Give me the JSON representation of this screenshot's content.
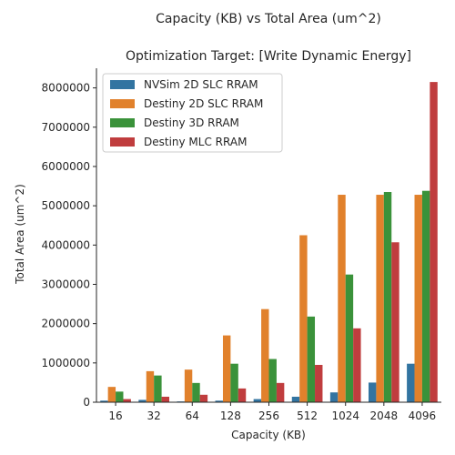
{
  "chart_data": {
    "type": "bar",
    "title": "Capacity (KB) vs Total Area (um^2)",
    "subtitle": "Optimization Target: [Write Dynamic Energy]",
    "xlabel": "Capacity (KB)",
    "ylabel": "Total Area (um^2)",
    "categories": [
      "16",
      "32",
      "64",
      "128",
      "256",
      "512",
      "1024",
      "2048",
      "4096"
    ],
    "ylim": [
      0,
      8500000
    ],
    "yticks": [
      0,
      1000000,
      2000000,
      3000000,
      4000000,
      5000000,
      6000000,
      7000000,
      8000000
    ],
    "ytick_labels": [
      "0",
      "1000000",
      "2000000",
      "3000000",
      "4000000",
      "5000000",
      "6000000",
      "7000000",
      "8000000"
    ],
    "legend_position": "top-left",
    "series": [
      {
        "name": "NVSim 2D SLC RRAM",
        "color": "#3274a1",
        "values": [
          40000,
          60000,
          20000,
          40000,
          80000,
          140000,
          250000,
          500000,
          980000
        ]
      },
      {
        "name": "Destiny 2D SLC RRAM",
        "color": "#e1812c",
        "values": [
          390000,
          790000,
          830000,
          1700000,
          2370000,
          4250000,
          5280000,
          5280000,
          5280000
        ]
      },
      {
        "name": "Destiny 3D RRAM",
        "color": "#3a923a",
        "values": [
          270000,
          680000,
          490000,
          980000,
          1100000,
          2180000,
          3250000,
          5350000,
          5380000
        ]
      },
      {
        "name": "Destiny MLC RRAM",
        "color": "#c03d3e",
        "values": [
          80000,
          140000,
          190000,
          350000,
          490000,
          950000,
          1880000,
          4070000,
          8150000
        ]
      }
    ]
  }
}
